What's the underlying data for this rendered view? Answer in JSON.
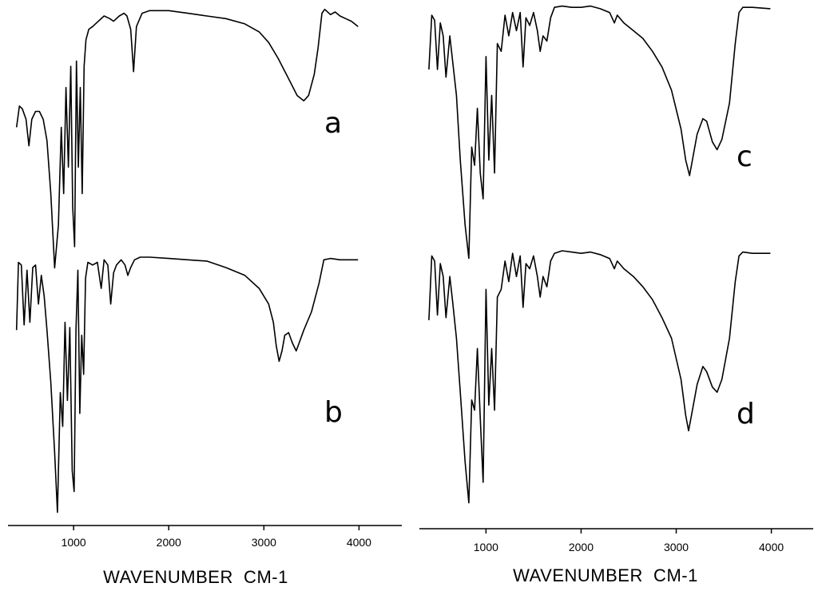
{
  "chart_data": [
    {
      "type": "line",
      "xlabel": "WAVENUMBER  CM-1",
      "xlim": [
        310,
        4450
      ],
      "ylim": [
        0,
        1
      ],
      "x_ticks": [
        1000,
        2000,
        3000,
        4000
      ],
      "x_tick_labels": [
        "1000",
        "2000",
        "3000",
        "4000"
      ],
      "grid": false,
      "series": [
        {
          "label": "a",
          "points": [
            [
              400,
              0.55
            ],
            [
              430,
              0.63
            ],
            [
              460,
              0.62
            ],
            [
              500,
              0.58
            ],
            [
              530,
              0.48
            ],
            [
              560,
              0.58
            ],
            [
              600,
              0.61
            ],
            [
              640,
              0.61
            ],
            [
              680,
              0.58
            ],
            [
              720,
              0.5
            ],
            [
              760,
              0.3
            ],
            [
              800,
              0.02
            ],
            [
              840,
              0.18
            ],
            [
              870,
              0.55
            ],
            [
              895,
              0.3
            ],
            [
              920,
              0.7
            ],
            [
              945,
              0.4
            ],
            [
              970,
              0.78
            ],
            [
              990,
              0.25
            ],
            [
              1010,
              0.1
            ],
            [
              1030,
              0.8
            ],
            [
              1050,
              0.4
            ],
            [
              1070,
              0.7
            ],
            [
              1090,
              0.3
            ],
            [
              1110,
              0.78
            ],
            [
              1130,
              0.88
            ],
            [
              1160,
              0.92
            ],
            [
              1200,
              0.93
            ],
            [
              1260,
              0.95
            ],
            [
              1320,
              0.97
            ],
            [
              1380,
              0.96
            ],
            [
              1420,
              0.95
            ],
            [
              1480,
              0.97
            ],
            [
              1530,
              0.98
            ],
            [
              1560,
              0.97
            ],
            [
              1600,
              0.92
            ],
            [
              1630,
              0.76
            ],
            [
              1660,
              0.93
            ],
            [
              1720,
              0.98
            ],
            [
              1800,
              0.99
            ],
            [
              2000,
              0.99
            ],
            [
              2200,
              0.98
            ],
            [
              2400,
              0.97
            ],
            [
              2600,
              0.96
            ],
            [
              2800,
              0.94
            ],
            [
              2950,
              0.91
            ],
            [
              3050,
              0.87
            ],
            [
              3150,
              0.81
            ],
            [
              3250,
              0.74
            ],
            [
              3350,
              0.67
            ],
            [
              3420,
              0.65
            ],
            [
              3470,
              0.67
            ],
            [
              3530,
              0.75
            ],
            [
              3570,
              0.85
            ],
            [
              3610,
              0.98
            ],
            [
              3640,
              0.995
            ],
            [
              3700,
              0.975
            ],
            [
              3750,
              0.985
            ],
            [
              3800,
              0.97
            ],
            [
              3860,
              0.96
            ],
            [
              3920,
              0.95
            ],
            [
              3990,
              0.93
            ]
          ]
        },
        {
          "label": "b",
          "points": [
            [
              400,
              0.72
            ],
            [
              420,
              0.98
            ],
            [
              450,
              0.97
            ],
            [
              480,
              0.74
            ],
            [
              510,
              0.95
            ],
            [
              540,
              0.75
            ],
            [
              570,
              0.96
            ],
            [
              600,
              0.97
            ],
            [
              630,
              0.82
            ],
            [
              660,
              0.93
            ],
            [
              690,
              0.85
            ],
            [
              720,
              0.72
            ],
            [
              760,
              0.52
            ],
            [
              800,
              0.25
            ],
            [
              830,
              0.02
            ],
            [
              860,
              0.48
            ],
            [
              885,
              0.35
            ],
            [
              910,
              0.75
            ],
            [
              935,
              0.45
            ],
            [
              960,
              0.73
            ],
            [
              985,
              0.18
            ],
            [
              1005,
              0.1
            ],
            [
              1025,
              0.72
            ],
            [
              1045,
              0.95
            ],
            [
              1065,
              0.4
            ],
            [
              1085,
              0.7
            ],
            [
              1105,
              0.55
            ],
            [
              1125,
              0.92
            ],
            [
              1150,
              0.98
            ],
            [
              1200,
              0.97
            ],
            [
              1250,
              0.98
            ],
            [
              1290,
              0.88
            ],
            [
              1320,
              0.99
            ],
            [
              1360,
              0.97
            ],
            [
              1390,
              0.82
            ],
            [
              1420,
              0.94
            ],
            [
              1450,
              0.97
            ],
            [
              1500,
              0.99
            ],
            [
              1540,
              0.97
            ],
            [
              1570,
              0.93
            ],
            [
              1600,
              0.96
            ],
            [
              1640,
              0.99
            ],
            [
              1700,
              1.0
            ],
            [
              1800,
              1.0
            ],
            [
              2000,
              0.995
            ],
            [
              2200,
              0.99
            ],
            [
              2400,
              0.985
            ],
            [
              2600,
              0.96
            ],
            [
              2800,
              0.93
            ],
            [
              2950,
              0.88
            ],
            [
              3050,
              0.82
            ],
            [
              3100,
              0.75
            ],
            [
              3130,
              0.66
            ],
            [
              3160,
              0.6
            ],
            [
              3190,
              0.64
            ],
            [
              3220,
              0.7
            ],
            [
              3260,
              0.71
            ],
            [
              3300,
              0.67
            ],
            [
              3340,
              0.64
            ],
            [
              3370,
              0.67
            ],
            [
              3420,
              0.72
            ],
            [
              3500,
              0.79
            ],
            [
              3580,
              0.9
            ],
            [
              3630,
              0.99
            ],
            [
              3700,
              0.995
            ],
            [
              3800,
              0.99
            ],
            [
              3990,
              0.99
            ]
          ]
        }
      ]
    },
    {
      "type": "line",
      "xlabel": "WAVENUMBER  CM-1",
      "xlim": [
        300,
        4440
      ],
      "ylim": [
        0,
        1
      ],
      "x_ticks": [
        1000,
        2000,
        3000,
        4000
      ],
      "x_tick_labels": [
        "1000",
        "2000",
        "3000",
        "4000"
      ],
      "grid": false,
      "series": [
        {
          "label": "c",
          "points": [
            [
              400,
              0.75
            ],
            [
              430,
              0.96
            ],
            [
              460,
              0.94
            ],
            [
              490,
              0.75
            ],
            [
              520,
              0.93
            ],
            [
              550,
              0.88
            ],
            [
              580,
              0.72
            ],
            [
              620,
              0.88
            ],
            [
              650,
              0.78
            ],
            [
              690,
              0.65
            ],
            [
              730,
              0.4
            ],
            [
              780,
              0.15
            ],
            [
              820,
              0.02
            ],
            [
              850,
              0.45
            ],
            [
              880,
              0.38
            ],
            [
              910,
              0.6
            ],
            [
              940,
              0.35
            ],
            [
              970,
              0.25
            ],
            [
              1000,
              0.8
            ],
            [
              1030,
              0.4
            ],
            [
              1060,
              0.65
            ],
            [
              1090,
              0.35
            ],
            [
              1120,
              0.85
            ],
            [
              1160,
              0.82
            ],
            [
              1200,
              0.96
            ],
            [
              1240,
              0.88
            ],
            [
              1280,
              0.97
            ],
            [
              1320,
              0.9
            ],
            [
              1360,
              0.97
            ],
            [
              1390,
              0.76
            ],
            [
              1420,
              0.95
            ],
            [
              1460,
              0.92
            ],
            [
              1500,
              0.97
            ],
            [
              1540,
              0.9
            ],
            [
              1570,
              0.82
            ],
            [
              1600,
              0.88
            ],
            [
              1640,
              0.86
            ],
            [
              1680,
              0.95
            ],
            [
              1720,
              0.99
            ],
            [
              1800,
              0.995
            ],
            [
              1900,
              0.99
            ],
            [
              2000,
              0.99
            ],
            [
              2100,
              0.995
            ],
            [
              2200,
              0.985
            ],
            [
              2300,
              0.97
            ],
            [
              2350,
              0.93
            ],
            [
              2380,
              0.96
            ],
            [
              2450,
              0.93
            ],
            [
              2550,
              0.9
            ],
            [
              2650,
              0.87
            ],
            [
              2750,
              0.82
            ],
            [
              2850,
              0.76
            ],
            [
              2950,
              0.67
            ],
            [
              3050,
              0.52
            ],
            [
              3100,
              0.4
            ],
            [
              3140,
              0.34
            ],
            [
              3170,
              0.4
            ],
            [
              3220,
              0.5
            ],
            [
              3280,
              0.56
            ],
            [
              3320,
              0.55
            ],
            [
              3380,
              0.47
            ],
            [
              3430,
              0.44
            ],
            [
              3480,
              0.48
            ],
            [
              3560,
              0.62
            ],
            [
              3620,
              0.85
            ],
            [
              3660,
              0.97
            ],
            [
              3700,
              0.99
            ],
            [
              3800,
              0.99
            ],
            [
              3990,
              0.985
            ]
          ]
        },
        {
          "label": "d",
          "points": [
            [
              400,
              0.73
            ],
            [
              430,
              0.98
            ],
            [
              460,
              0.96
            ],
            [
              490,
              0.75
            ],
            [
              520,
              0.95
            ],
            [
              550,
              0.9
            ],
            [
              580,
              0.74
            ],
            [
              620,
              0.9
            ],
            [
              650,
              0.8
            ],
            [
              690,
              0.66
            ],
            [
              730,
              0.45
            ],
            [
              780,
              0.18
            ],
            [
              820,
              0.02
            ],
            [
              850,
              0.42
            ],
            [
              880,
              0.38
            ],
            [
              910,
              0.62
            ],
            [
              940,
              0.35
            ],
            [
              970,
              0.1
            ],
            [
              1000,
              0.85
            ],
            [
              1030,
              0.4
            ],
            [
              1060,
              0.62
            ],
            [
              1090,
              0.38
            ],
            [
              1120,
              0.82
            ],
            [
              1160,
              0.85
            ],
            [
              1200,
              0.96
            ],
            [
              1240,
              0.88
            ],
            [
              1280,
              0.99
            ],
            [
              1320,
              0.9
            ],
            [
              1360,
              0.98
            ],
            [
              1390,
              0.78
            ],
            [
              1420,
              0.95
            ],
            [
              1460,
              0.93
            ],
            [
              1500,
              0.98
            ],
            [
              1540,
              0.9
            ],
            [
              1570,
              0.82
            ],
            [
              1600,
              0.9
            ],
            [
              1640,
              0.86
            ],
            [
              1680,
              0.96
            ],
            [
              1720,
              0.99
            ],
            [
              1800,
              1.0
            ],
            [
              1900,
              0.995
            ],
            [
              2000,
              0.99
            ],
            [
              2100,
              0.995
            ],
            [
              2200,
              0.985
            ],
            [
              2300,
              0.97
            ],
            [
              2350,
              0.93
            ],
            [
              2380,
              0.96
            ],
            [
              2450,
              0.93
            ],
            [
              2550,
              0.9
            ],
            [
              2650,
              0.86
            ],
            [
              2750,
              0.81
            ],
            [
              2850,
              0.74
            ],
            [
              2950,
              0.66
            ],
            [
              3050,
              0.5
            ],
            [
              3100,
              0.36
            ],
            [
              3130,
              0.3
            ],
            [
              3160,
              0.36
            ],
            [
              3220,
              0.48
            ],
            [
              3280,
              0.55
            ],
            [
              3320,
              0.53
            ],
            [
              3380,
              0.47
            ],
            [
              3430,
              0.45
            ],
            [
              3480,
              0.5
            ],
            [
              3560,
              0.66
            ],
            [
              3620,
              0.88
            ],
            [
              3660,
              0.98
            ],
            [
              3700,
              0.995
            ],
            [
              3800,
              0.99
            ],
            [
              3990,
              0.99
            ]
          ]
        }
      ]
    }
  ]
}
